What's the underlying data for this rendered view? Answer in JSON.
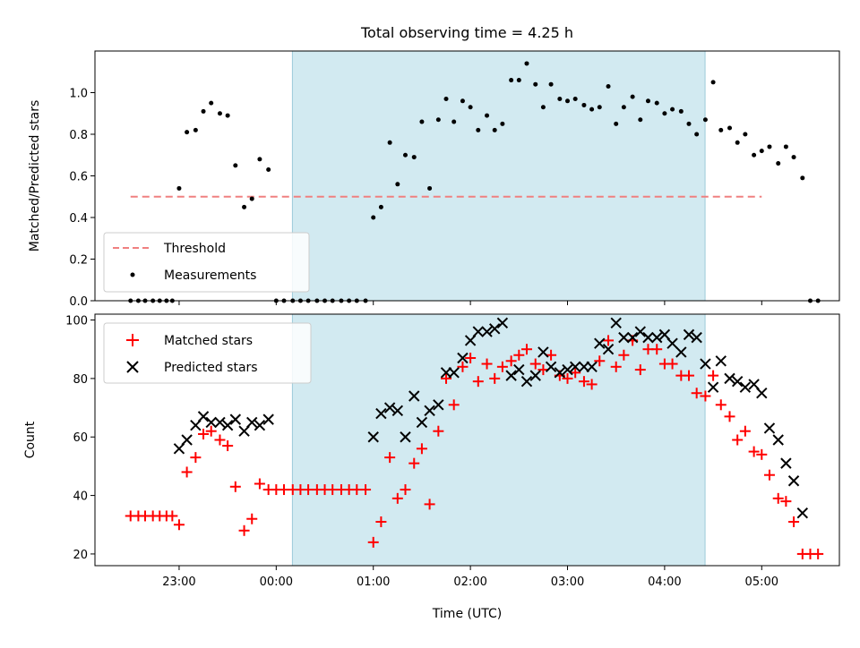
{
  "chart_data": [
    {
      "type": "scatter",
      "title": "Total observing time = 4.25 h",
      "xlabel": "",
      "ylabel": "Matched/Predicted stars",
      "ylim": [
        0,
        1.2
      ],
      "yticks": [
        0.0,
        0.2,
        0.4,
        0.6,
        0.8,
        1.0
      ],
      "ytick_labels": [
        "0.0",
        "0.2",
        "0.4",
        "0.6",
        "0.8",
        "1.0"
      ],
      "xlim": [
        -0.8667,
        6.8
      ],
      "legend_placement": "lower-left",
      "observing_window": [
        1.1667,
        5.4167
      ],
      "threshold": {
        "name": "Threshold",
        "value": 0.5,
        "x_range": [
          -0.5,
          6.0
        ],
        "color": "#f08080"
      },
      "series": [
        {
          "name": "Measurements",
          "color": "#000000",
          "points": [
            [
              -0.5,
              0
            ],
            [
              -0.42,
              0
            ],
            [
              -0.35,
              0
            ],
            [
              -0.27,
              0
            ],
            [
              -0.2,
              0
            ],
            [
              -0.13,
              0
            ],
            [
              -0.07,
              0
            ],
            [
              0.0,
              0.54
            ],
            [
              0.08,
              0.81
            ],
            [
              0.17,
              0.82
            ],
            [
              0.25,
              0.91
            ],
            [
              0.33,
              0.95
            ],
            [
              0.42,
              0.9
            ],
            [
              0.5,
              0.89
            ],
            [
              0.58,
              0.65
            ],
            [
              0.67,
              0.45
            ],
            [
              0.75,
              0.49
            ],
            [
              0.83,
              0.68
            ],
            [
              0.92,
              0.63
            ],
            [
              1.0,
              0
            ],
            [
              1.08,
              0
            ],
            [
              1.17,
              0
            ],
            [
              1.25,
              0
            ],
            [
              1.33,
              0
            ],
            [
              1.42,
              0
            ],
            [
              1.5,
              0
            ],
            [
              1.58,
              0
            ],
            [
              1.67,
              0
            ],
            [
              1.75,
              0
            ],
            [
              1.83,
              0
            ],
            [
              1.92,
              0
            ],
            [
              2.0,
              0.4
            ],
            [
              2.08,
              0.45
            ],
            [
              2.17,
              0.76
            ],
            [
              2.25,
              0.56
            ],
            [
              2.33,
              0.7
            ],
            [
              2.42,
              0.69
            ],
            [
              2.5,
              0.86
            ],
            [
              2.58,
              0.54
            ],
            [
              2.67,
              0.87
            ],
            [
              2.75,
              0.97
            ],
            [
              2.83,
              0.86
            ],
            [
              2.92,
              0.96
            ],
            [
              3.0,
              0.93
            ],
            [
              3.08,
              0.82
            ],
            [
              3.17,
              0.89
            ],
            [
              3.25,
              0.82
            ],
            [
              3.33,
              0.85
            ],
            [
              3.42,
              1.06
            ],
            [
              3.5,
              1.06
            ],
            [
              3.58,
              1.14
            ],
            [
              3.67,
              1.04
            ],
            [
              3.75,
              0.93
            ],
            [
              3.83,
              1.04
            ],
            [
              3.92,
              0.97
            ],
            [
              4.0,
              0.96
            ],
            [
              4.08,
              0.97
            ],
            [
              4.17,
              0.94
            ],
            [
              4.25,
              0.92
            ],
            [
              4.33,
              0.93
            ],
            [
              4.42,
              1.03
            ],
            [
              4.5,
              0.85
            ],
            [
              4.58,
              0.93
            ],
            [
              4.67,
              0.98
            ],
            [
              4.75,
              0.87
            ],
            [
              4.83,
              0.96
            ],
            [
              4.92,
              0.95
            ],
            [
              5.0,
              0.9
            ],
            [
              5.08,
              0.92
            ],
            [
              5.17,
              0.91
            ],
            [
              5.25,
              0.85
            ],
            [
              5.33,
              0.8
            ],
            [
              5.42,
              0.87
            ],
            [
              5.5,
              1.05
            ],
            [
              5.58,
              0.82
            ],
            [
              5.67,
              0.83
            ],
            [
              5.75,
              0.76
            ],
            [
              5.83,
              0.8
            ],
            [
              5.92,
              0.7
            ],
            [
              6.0,
              0.72
            ],
            [
              6.08,
              0.74
            ],
            [
              6.17,
              0.66
            ],
            [
              6.25,
              0.74
            ],
            [
              6.33,
              0.69
            ],
            [
              6.42,
              0.59
            ],
            [
              6.5,
              0
            ],
            [
              6.58,
              0
            ]
          ]
        }
      ]
    },
    {
      "type": "scatter",
      "title": "",
      "xlabel": "Time (UTC)",
      "ylabel": "Count",
      "ylim": [
        16,
        102
      ],
      "yticks": [
        20,
        40,
        60,
        80,
        100
      ],
      "ytick_labels": [
        "20",
        "40",
        "60",
        "80",
        "100"
      ],
      "xlim": [
        -0.8667,
        6.8
      ],
      "xticks": [
        0,
        1,
        2,
        3,
        4,
        5,
        6
      ],
      "xtick_labels": [
        "23:00",
        "00:00",
        "01:00",
        "02:00",
        "03:00",
        "04:00",
        "05:00"
      ],
      "legend_placement": "upper-left",
      "observing_window": [
        1.1667,
        5.4167
      ],
      "series": [
        {
          "name": "Matched stars",
          "marker": "plus",
          "color": "#ff0000",
          "points": [
            [
              -0.5,
              33
            ],
            [
              -0.42,
              33
            ],
            [
              -0.35,
              33
            ],
            [
              -0.27,
              33
            ],
            [
              -0.2,
              33
            ],
            [
              -0.13,
              33
            ],
            [
              -0.07,
              33
            ],
            [
              0.0,
              30
            ],
            [
              0.08,
              48
            ],
            [
              0.17,
              53
            ],
            [
              0.25,
              61
            ],
            [
              0.33,
              62
            ],
            [
              0.42,
              59
            ],
            [
              0.5,
              57
            ],
            [
              0.58,
              43
            ],
            [
              0.67,
              28
            ],
            [
              0.75,
              32
            ],
            [
              0.83,
              44
            ],
            [
              0.92,
              42
            ],
            [
              1.0,
              42
            ],
            [
              1.08,
              42
            ],
            [
              1.17,
              42
            ],
            [
              1.25,
              42
            ],
            [
              1.33,
              42
            ],
            [
              1.42,
              42
            ],
            [
              1.5,
              42
            ],
            [
              1.58,
              42
            ],
            [
              1.67,
              42
            ],
            [
              1.75,
              42
            ],
            [
              1.83,
              42
            ],
            [
              1.92,
              42
            ],
            [
              2.0,
              24
            ],
            [
              2.08,
              31
            ],
            [
              2.17,
              53
            ],
            [
              2.25,
              39
            ],
            [
              2.33,
              42
            ],
            [
              2.42,
              51
            ],
            [
              2.5,
              56
            ],
            [
              2.58,
              37
            ],
            [
              2.67,
              62
            ],
            [
              2.75,
              80
            ],
            [
              2.83,
              71
            ],
            [
              2.92,
              84
            ],
            [
              3.0,
              87
            ],
            [
              3.08,
              79
            ],
            [
              3.17,
              85
            ],
            [
              3.25,
              80
            ],
            [
              3.33,
              84
            ],
            [
              3.42,
              86
            ],
            [
              3.5,
              88
            ],
            [
              3.58,
              90
            ],
            [
              3.67,
              85
            ],
            [
              3.75,
              83
            ],
            [
              3.83,
              88
            ],
            [
              3.92,
              81
            ],
            [
              4.0,
              80
            ],
            [
              4.08,
              82
            ],
            [
              4.17,
              79
            ],
            [
              4.25,
              78
            ],
            [
              4.33,
              86
            ],
            [
              4.42,
              93
            ],
            [
              4.5,
              84
            ],
            [
              4.58,
              88
            ],
            [
              4.67,
              93
            ],
            [
              4.75,
              83
            ],
            [
              4.83,
              90
            ],
            [
              4.92,
              90
            ],
            [
              5.0,
              85
            ],
            [
              5.08,
              85
            ],
            [
              5.17,
              81
            ],
            [
              5.25,
              81
            ],
            [
              5.33,
              75
            ],
            [
              5.42,
              74
            ],
            [
              5.5,
              81
            ],
            [
              5.58,
              71
            ],
            [
              5.67,
              67
            ],
            [
              5.75,
              59
            ],
            [
              5.83,
              62
            ],
            [
              5.92,
              55
            ],
            [
              6.0,
              54
            ],
            [
              6.08,
              47
            ],
            [
              6.17,
              39
            ],
            [
              6.25,
              38
            ],
            [
              6.33,
              31
            ],
            [
              6.42,
              20
            ],
            [
              6.5,
              20
            ],
            [
              6.58,
              20
            ]
          ]
        },
        {
          "name": "Predicted stars",
          "marker": "x",
          "color": "#000000",
          "points": [
            [
              0.0,
              56
            ],
            [
              0.08,
              59
            ],
            [
              0.17,
              64
            ],
            [
              0.25,
              67
            ],
            [
              0.33,
              65
            ],
            [
              0.42,
              65
            ],
            [
              0.5,
              64
            ],
            [
              0.58,
              66
            ],
            [
              0.67,
              62
            ],
            [
              0.75,
              65
            ],
            [
              0.83,
              64
            ],
            [
              0.92,
              66
            ],
            [
              2.0,
              60
            ],
            [
              2.08,
              68
            ],
            [
              2.17,
              70
            ],
            [
              2.25,
              69
            ],
            [
              2.33,
              60
            ],
            [
              2.42,
              74
            ],
            [
              2.5,
              65
            ],
            [
              2.58,
              69
            ],
            [
              2.67,
              71
            ],
            [
              2.75,
              82
            ],
            [
              2.83,
              82
            ],
            [
              2.92,
              87
            ],
            [
              3.0,
              93
            ],
            [
              3.08,
              96
            ],
            [
              3.17,
              96
            ],
            [
              3.25,
              97
            ],
            [
              3.33,
              99
            ],
            [
              3.42,
              81
            ],
            [
              3.5,
              83
            ],
            [
              3.58,
              79
            ],
            [
              3.67,
              81
            ],
            [
              3.75,
              89
            ],
            [
              3.83,
              84
            ],
            [
              3.92,
              82
            ],
            [
              4.0,
              83
            ],
            [
              4.08,
              84
            ],
            [
              4.17,
              84
            ],
            [
              4.25,
              84
            ],
            [
              4.33,
              92
            ],
            [
              4.42,
              90
            ],
            [
              4.5,
              99
            ],
            [
              4.58,
              94
            ],
            [
              4.67,
              94
            ],
            [
              4.75,
              96
            ],
            [
              4.83,
              94
            ],
            [
              4.92,
              94
            ],
            [
              5.0,
              95
            ],
            [
              5.08,
              92
            ],
            [
              5.17,
              89
            ],
            [
              5.25,
              95
            ],
            [
              5.33,
              94
            ],
            [
              5.42,
              85
            ],
            [
              5.5,
              77
            ],
            [
              5.58,
              86
            ],
            [
              5.67,
              80
            ],
            [
              5.75,
              79
            ],
            [
              5.83,
              77
            ],
            [
              5.92,
              78
            ],
            [
              6.0,
              75
            ],
            [
              6.08,
              63
            ],
            [
              6.17,
              59
            ],
            [
              6.25,
              51
            ],
            [
              6.33,
              45
            ],
            [
              6.42,
              34
            ]
          ]
        }
      ]
    }
  ]
}
